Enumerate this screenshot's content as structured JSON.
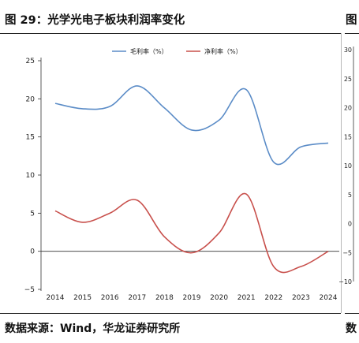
{
  "figure": {
    "title": "图 29：光学光电子板块利润率变化",
    "source": "数据来源：Wind，华龙证券研究所"
  },
  "side_panel": {
    "title": "图",
    "source": "数",
    "tick_labels": [
      "30",
      "25",
      "20",
      "15",
      "10",
      "5",
      "0",
      "-5",
      "-10"
    ]
  },
  "chart_data": {
    "type": "line",
    "x": [
      "2014",
      "2015",
      "2016",
      "2017",
      "2018",
      "2019",
      "2020",
      "2021",
      "2022",
      "2023",
      "2024"
    ],
    "series": [
      {
        "name": "毛利率（%）",
        "color": "#5b8cc7",
        "values": [
          19.4,
          18.7,
          19.0,
          21.7,
          18.8,
          15.9,
          17.2,
          21.2,
          11.7,
          13.7,
          14.2
        ]
      },
      {
        "name": "净利率（%）",
        "color": "#c8504c",
        "values": [
          5.3,
          3.8,
          5.0,
          6.7,
          1.9,
          -0.2,
          2.4,
          7.5,
          -2.0,
          -2.0,
          0.0
        ]
      }
    ],
    "ylim": [
      -5,
      25
    ],
    "yticks": [
      -5,
      0,
      5,
      10,
      15,
      20,
      25
    ],
    "legend": "top-center",
    "grid": false
  }
}
